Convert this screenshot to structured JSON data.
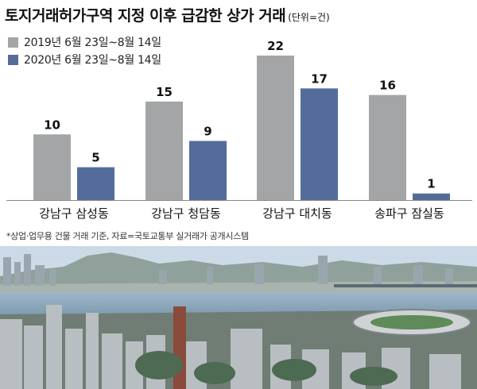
{
  "header": {
    "title": "토지거래허가구역 지정 이후 급감한 상가 거래",
    "unit": "(단위=건)"
  },
  "colors": {
    "series_2019": "#a3a5a7",
    "series_2020": "#556c9b",
    "baseline": "#888888"
  },
  "chart_data": {
    "type": "bar",
    "title": "토지거래허가구역 지정 이후 급감한 상가 거래",
    "ylabel": "(단위=건)",
    "categories": [
      "강남구 삼성동",
      "강남구 청담동",
      "강남구 대치동",
      "송파구 잠실동"
    ],
    "series": [
      {
        "name": "2019년 6월 23일~8월 14일",
        "values": [
          10,
          15,
          22,
          16
        ]
      },
      {
        "name": "2020년 6월 23일~8월 14일",
        "values": [
          5,
          9,
          17,
          1
        ]
      }
    ],
    "ylim": [
      0,
      22
    ],
    "grid": false,
    "legend": "top-left"
  },
  "footnote": "*상업·업무용 건물 거래 기준, 자료=국토교통부 실거래가 공개시스템",
  "photo": {
    "icon": "city-skyline-photo"
  }
}
